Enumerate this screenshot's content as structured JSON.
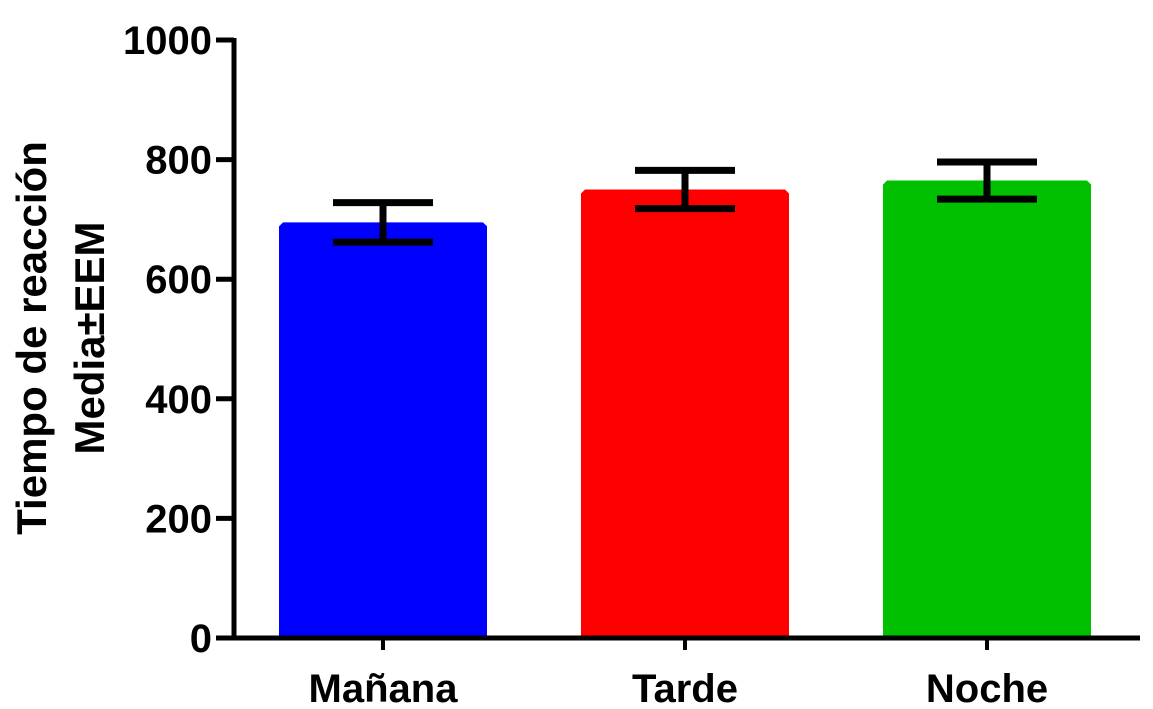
{
  "chart_data": {
    "type": "bar",
    "categories": [
      "Mañana",
      "Tarde",
      "Noche"
    ],
    "values": [
      695,
      750,
      765
    ],
    "errors": [
      33,
      32,
      31
    ],
    "colors": [
      "#0000ff",
      "#ff0000",
      "#00c000"
    ],
    "ylabel_line1": "Tiempo de reacción",
    "ylabel_line2": "Media±EEM",
    "xlabel": "",
    "ylim": [
      0,
      1000
    ],
    "yticks": [
      0,
      200,
      400,
      600,
      800,
      1000
    ],
    "ytick_labels": [
      "0",
      "200",
      "400",
      "600",
      "800",
      "1000"
    ],
    "grid": false,
    "legend": false
  }
}
